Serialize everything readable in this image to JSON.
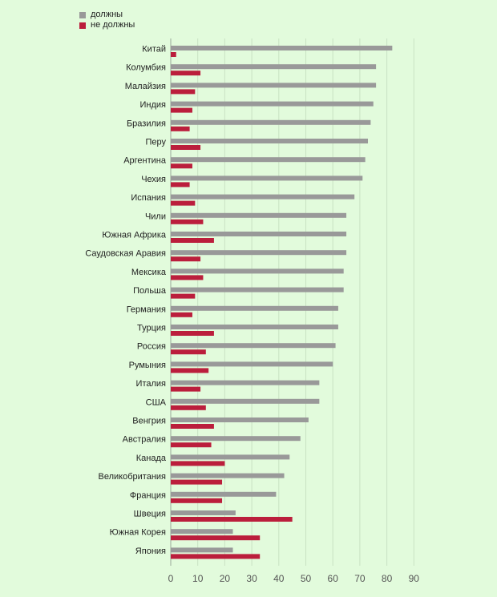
{
  "chart_data": {
    "type": "bar",
    "orientation": "horizontal",
    "categories": [
      "Китай",
      "Колумбия",
      "Малайзия",
      "Индия",
      "Бразилия",
      "Перу",
      "Аргентина",
      "Чехия",
      "Испания",
      "Чили",
      "Южная Африка",
      "Саудовская Аравия",
      "Мексика",
      "Польша",
      "Германия",
      "Турция",
      "Россия",
      "Румыния",
      "Италия",
      "США",
      "Венгрия",
      "Австралия",
      "Канада",
      "Великобритания",
      "Франция",
      "Швеция",
      "Южная Корея",
      "Япония"
    ],
    "series": [
      {
        "name": "должны",
        "color": "#999999",
        "values": [
          82,
          76,
          76,
          75,
          74,
          73,
          72,
          71,
          68,
          65,
          65,
          65,
          64,
          64,
          62,
          62,
          61,
          60,
          55,
          55,
          51,
          48,
          44,
          42,
          39,
          24,
          23,
          23
        ]
      },
      {
        "name": "не должны",
        "color": "#bb1e3c",
        "values": [
          2,
          11,
          9,
          8,
          7,
          11,
          8,
          7,
          9,
          12,
          16,
          11,
          12,
          9,
          8,
          16,
          13,
          14,
          11,
          13,
          16,
          15,
          20,
          19,
          19,
          45,
          33,
          33
        ]
      }
    ],
    "xticks": [
      0,
      10,
      20,
      30,
      40,
      50,
      60,
      70,
      80,
      90
    ],
    "xlim": [
      0,
      90
    ],
    "grid": true,
    "legend_position": "top-left"
  }
}
